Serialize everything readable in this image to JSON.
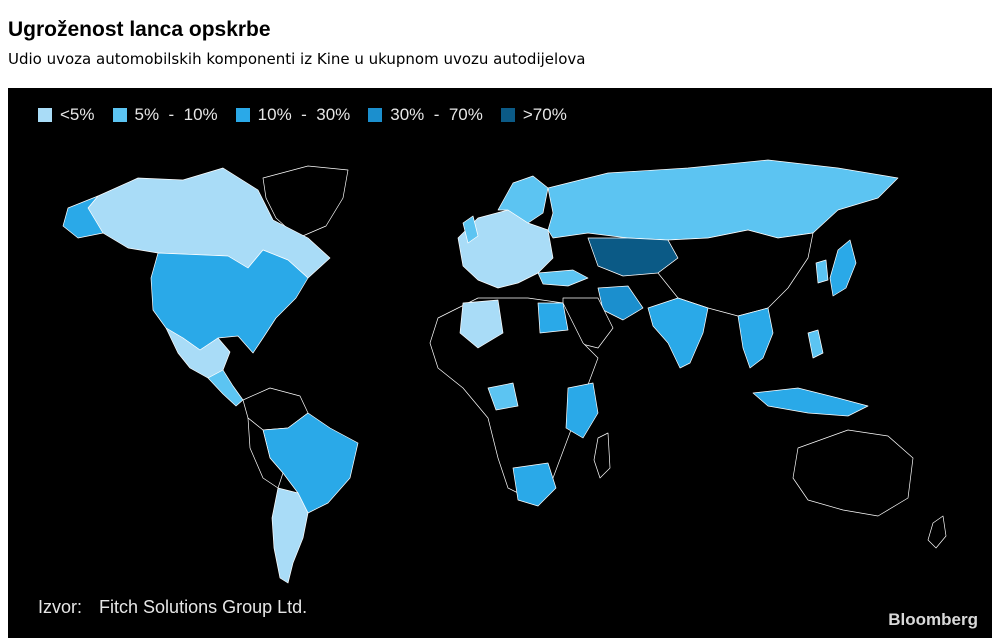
{
  "title": "Ugroženost lanca opskrbe",
  "subtitle": "Udio uvoza automobilskih komponenti iz Kine u ukupnom uvozu autodijelova",
  "legend": {
    "items": [
      {
        "label": "<5%",
        "color": "#a9dcf7"
      },
      {
        "label": "5%  -  10%",
        "color": "#5cc4f2"
      },
      {
        "label": "10%  -  30%",
        "color": "#2aa9e8"
      },
      {
        "label": "30%  -  70%",
        "color": "#1b8fce"
      },
      {
        "label": ">70%",
        "color": "#0b5a86"
      }
    ]
  },
  "colors": {
    "background": "#000000",
    "no_data": "#000000",
    "border": "#ffffff"
  },
  "source": {
    "prefix": "Izvor:",
    "text": "Fitch Solutions Group Ltd."
  },
  "brand": "Bloomberg",
  "map_regions": [
    {
      "name": "canada",
      "bin": "<5%"
    },
    {
      "name": "usa",
      "bin": "10%  -  30%"
    },
    {
      "name": "mexico",
      "bin": "<5%"
    },
    {
      "name": "brazil",
      "bin": "10%  -  30%"
    },
    {
      "name": "argentina",
      "bin": "<5%"
    },
    {
      "name": "russia",
      "bin": "5%  -  10%"
    },
    {
      "name": "kazakhstan",
      "bin": ">70%"
    },
    {
      "name": "india",
      "bin": "10%  -  30%"
    },
    {
      "name": "iran",
      "bin": "30%  -  70%"
    },
    {
      "name": "algeria",
      "bin": "<5%"
    },
    {
      "name": "south-africa",
      "bin": "10%  -  30%"
    },
    {
      "name": "japan",
      "bin": "10%  -  30%"
    }
  ]
}
